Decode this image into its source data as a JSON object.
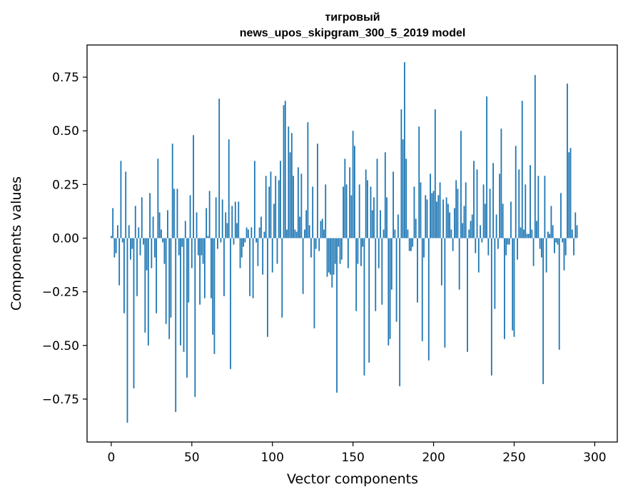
{
  "chart_data": {
    "type": "bar",
    "title": "тигровый",
    "subtitle": "news_upos_skipgram_300_5_2019 model",
    "xlabel": "Vector components",
    "ylabel": "Components values",
    "xlim": [
      -15,
      314
    ],
    "ylim": [
      -0.95,
      0.9
    ],
    "x_ticks": [
      0,
      50,
      100,
      150,
      200,
      250,
      300
    ],
    "x_tick_labels": [
      "0",
      "50",
      "100",
      "150",
      "200",
      "250",
      "300"
    ],
    "y_ticks": [
      0.75,
      0.5,
      0.25,
      0.0,
      -0.25,
      -0.5,
      -0.75
    ],
    "y_tick_labels": [
      "0.75",
      "0.50",
      "0.25",
      "0.00",
      "−0.25",
      "−0.50",
      "−0.75"
    ],
    "bar_color": "#1f77b4",
    "values": [
      0.01,
      0.14,
      -0.09,
      -0.07,
      0.06,
      -0.22,
      0.36,
      -0.02,
      -0.35,
      0.31,
      -0.86,
      0.06,
      -0.1,
      -0.05,
      -0.7,
      0.15,
      -0.27,
      0.05,
      -0.08,
      0.19,
      -0.03,
      -0.44,
      -0.15,
      -0.5,
      0.21,
      -0.14,
      0.1,
      -0.09,
      -0.35,
      0.37,
      0.12,
      0.04,
      -0.02,
      -0.12,
      -0.4,
      0.13,
      -0.47,
      -0.37,
      0.44,
      0.23,
      -0.81,
      0.23,
      -0.08,
      -0.5,
      -0.04,
      -0.53,
      0.08,
      -0.65,
      -0.3,
      0.2,
      -0.14,
      0.48,
      -0.74,
      0.12,
      -0.08,
      -0.31,
      -0.08,
      -0.12,
      -0.28,
      0.14,
      0.01,
      0.22,
      -0.28,
      -0.45,
      -0.54,
      0.19,
      -0.05,
      0.65,
      -0.02,
      0.18,
      -0.27,
      0.12,
      0.07,
      0.46,
      -0.61,
      0.15,
      -0.03,
      0.17,
      0.07,
      0.17,
      -0.14,
      -0.09,
      -0.04,
      -0.02,
      0.05,
      0.04,
      -0.27,
      0.05,
      -0.28,
      0.36,
      -0.02,
      -0.13,
      0.05,
      0.1,
      -0.17,
      0.03,
      0.29,
      -0.46,
      0.24,
      0.31,
      -0.16,
      0.16,
      0.29,
      -0.12,
      0.27,
      0.36,
      -0.37,
      0.62,
      0.64,
      0.04,
      0.52,
      0.4,
      0.49,
      0.29,
      0.04,
      0.03,
      0.33,
      0.1,
      0.3,
      -0.26,
      0.04,
      0.13,
      0.54,
      0.06,
      -0.09,
      0.24,
      -0.42,
      -0.05,
      0.44,
      -0.06,
      0.08,
      0.09,
      0.04,
      0.25,
      -0.18,
      -0.16,
      -0.17,
      -0.23,
      -0.17,
      -0.12,
      -0.72,
      -0.04,
      -0.12,
      -0.1,
      0.24,
      0.37,
      0.25,
      -0.14,
      0.33,
      0.2,
      0.5,
      0.43,
      -0.34,
      -0.12,
      0.25,
      -0.13,
      -0.04,
      -0.64,
      0.32,
      0.27,
      -0.58,
      0.24,
      0.13,
      0.19,
      -0.34,
      0.37,
      -0.14,
      0.13,
      -0.31,
      0.04,
      0.4,
      0.19,
      -0.5,
      -0.47,
      -0.24,
      0.31,
      0.04,
      -0.39,
      0.11,
      -0.69,
      0.6,
      0.46,
      0.82,
      0.37,
      0.04,
      -0.06,
      -0.06,
      -0.04,
      0.24,
      0.09,
      -0.3,
      0.52,
      0.26,
      -0.48,
      -0.09,
      0.2,
      0.18,
      -0.57,
      0.3,
      0.21,
      0.22,
      0.6,
      0.17,
      0.2,
      0.26,
      -0.22,
      0.18,
      -0.51,
      0.19,
      0.16,
      0.12,
      0.04,
      -0.06,
      0.14,
      0.27,
      0.23,
      -0.24,
      0.5,
      0.07,
      0.15,
      0.26,
      -0.53,
      0.04,
      0.08,
      0.11,
      0.36,
      -0.07,
      0.32,
      -0.16,
      0.06,
      -0.02,
      0.25,
      0.16,
      0.66,
      -0.08,
      0.23,
      -0.64,
      0.35,
      -0.33,
      0.11,
      -0.05,
      0.3,
      0.51,
      0.16,
      -0.47,
      -0.08,
      -0.03,
      -0.03,
      0.17,
      -0.43,
      -0.46,
      0.43,
      -0.1,
      0.32,
      0.05,
      0.64,
      0.04,
      0.25,
      0.02,
      0.02,
      0.34,
      0.04,
      -0.13,
      0.76,
      0.08,
      0.29,
      -0.05,
      -0.09,
      -0.68,
      0.29,
      -0.16,
      0.03,
      0.02,
      0.15,
      0.06,
      -0.07,
      -0.02,
      -0.03,
      -0.52,
      0.21,
      -0.02,
      -0.15,
      -0.08,
      0.72,
      0.4,
      0.42,
      0.04,
      -0.08,
      0.12,
      0.06
    ]
  }
}
